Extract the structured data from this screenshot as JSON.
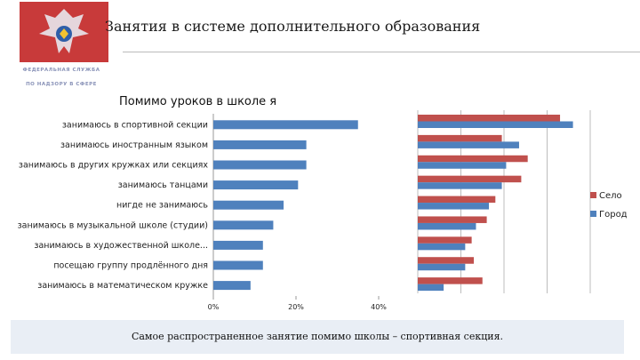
{
  "header": {
    "title": "Занятия в системе дополнительного образования",
    "agency_line1": "ФЕДЕРАЛЬНАЯ СЛУЖБА",
    "agency_line2": "ПО НАДЗОРУ В СФЕРЕ",
    "logo_icon": "double-headed-eagle-emblem-icon"
  },
  "chart_data": [
    {
      "type": "bar",
      "orientation": "horizontal",
      "title": "Помимо уроков в школе я",
      "categories": [
        "занимаюсь в спортивной секции",
        "занимаюсь иностранным языком",
        "занимаюсь в других кружках или секциях",
        "занимаюсь танцами",
        "нигде не занимаюсь",
        "занимаюсь в музыкальной школе (студии)",
        "занимаюсь в художественной школе...",
        "посещаю группу продлённого дня",
        "занимаюсь в математическом кружке"
      ],
      "values": [
        35,
        22.5,
        22.5,
        20.5,
        17,
        14.5,
        12,
        12,
        9
      ],
      "xlim": [
        0,
        40
      ],
      "xticks": [
        "0%",
        "20%",
        "40%"
      ],
      "color": "#4f81bd"
    },
    {
      "type": "bar",
      "orientation": "horizontal",
      "categories": [
        "занимаюсь в спортивной секции",
        "занимаюсь иностранным языком",
        "занимаюсь в других кружках или секциях",
        "занимаюсь танцами",
        "нигде не занимаюсь",
        "занимаюсь в музыкальной школе (студии)",
        "занимаюсь в художественной школе...",
        "посещаю группу продлённого дня",
        "занимаюсь в математическом кружке"
      ],
      "series": [
        {
          "name": "Село",
          "color": "#c0504d",
          "values": [
            33,
            19.5,
            25.5,
            24,
            18,
            16,
            12.5,
            13,
            15
          ]
        },
        {
          "name": "Город",
          "color": "#4f81bd",
          "values": [
            36,
            23.5,
            20.5,
            19.5,
            16.5,
            13.5,
            11,
            11,
            6
          ]
        }
      ],
      "legend": "right",
      "grid": true,
      "gridlines": 4
    }
  ],
  "caption": "Самое распространенное занятие помимо школы – спортивная секция."
}
